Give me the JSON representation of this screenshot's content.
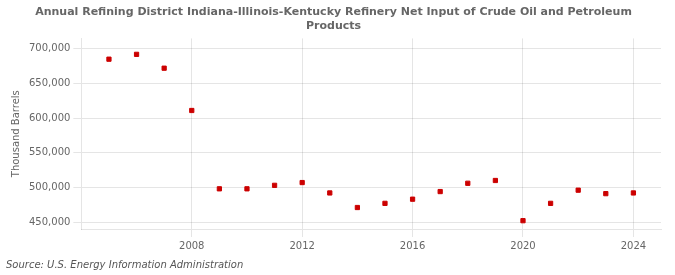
{
  "chart_data": {
    "type": "scatter",
    "title": "Annual Refining District Indiana-Illinois-Kentucky Refinery Net Input of Crude Oil and Petroleum\nProducts",
    "ylabel": "Thousand Barrels",
    "source": "Source: U.S. Energy Information Administration",
    "x": [
      2005,
      2006,
      2007,
      2008,
      2009,
      2010,
      2011,
      2012,
      2013,
      2014,
      2015,
      2016,
      2017,
      2018,
      2019,
      2020,
      2021,
      2022,
      2023,
      2024
    ],
    "values": [
      685000,
      692000,
      672000,
      611000,
      498000,
      498000,
      503000,
      507000,
      492000,
      471000,
      477000,
      483000,
      494000,
      506000,
      510000,
      452000,
      477000,
      496000,
      491000,
      492000
    ],
    "color": "#cc0000",
    "marker": "square",
    "xlim": [
      2004,
      2025
    ],
    "xticks": [
      2008,
      2012,
      2016,
      2020,
      2024
    ],
    "ylim": [
      440000,
      715000
    ],
    "yticks": [
      {
        "value": 450000,
        "label": "450,000"
      },
      {
        "value": 500000,
        "label": "500,000"
      },
      {
        "value": 550000,
        "label": "550,000"
      },
      {
        "value": 600000,
        "label": "600,000"
      },
      {
        "value": 650000,
        "label": "650,000"
      },
      {
        "value": 700000,
        "label": "700,000"
      }
    ],
    "grid": true
  }
}
